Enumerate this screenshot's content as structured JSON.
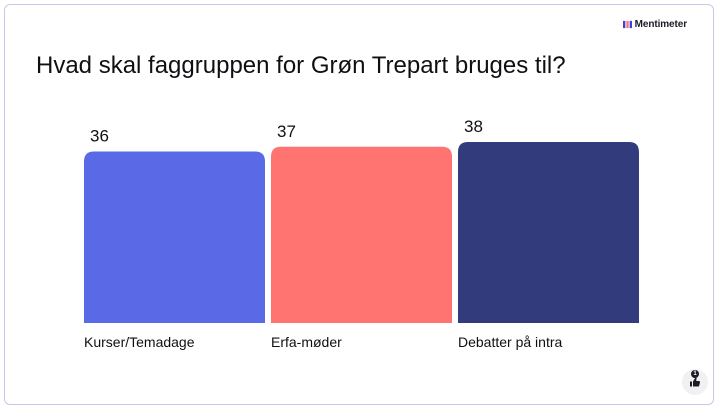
{
  "brand": {
    "name": "Mentimeter",
    "icon": "mentimeter-logo-icon",
    "mark_color": "#3f3ee0"
  },
  "reaction": {
    "count": "1",
    "icon": "thumbs-up-icon"
  },
  "chart_data": {
    "type": "bar",
    "title": "Hvad skal faggruppen for Grøn Trepart bruges til?",
    "categories": [
      "Kurser/Temadage",
      "Erfa-møder",
      "Debatter på intra"
    ],
    "values": [
      36,
      37,
      38
    ],
    "colors": [
      "#5a6ae6",
      "#ff7370",
      "#323c7d"
    ],
    "ylim": [
      0,
      38
    ],
    "grid": false,
    "legend": "none"
  }
}
